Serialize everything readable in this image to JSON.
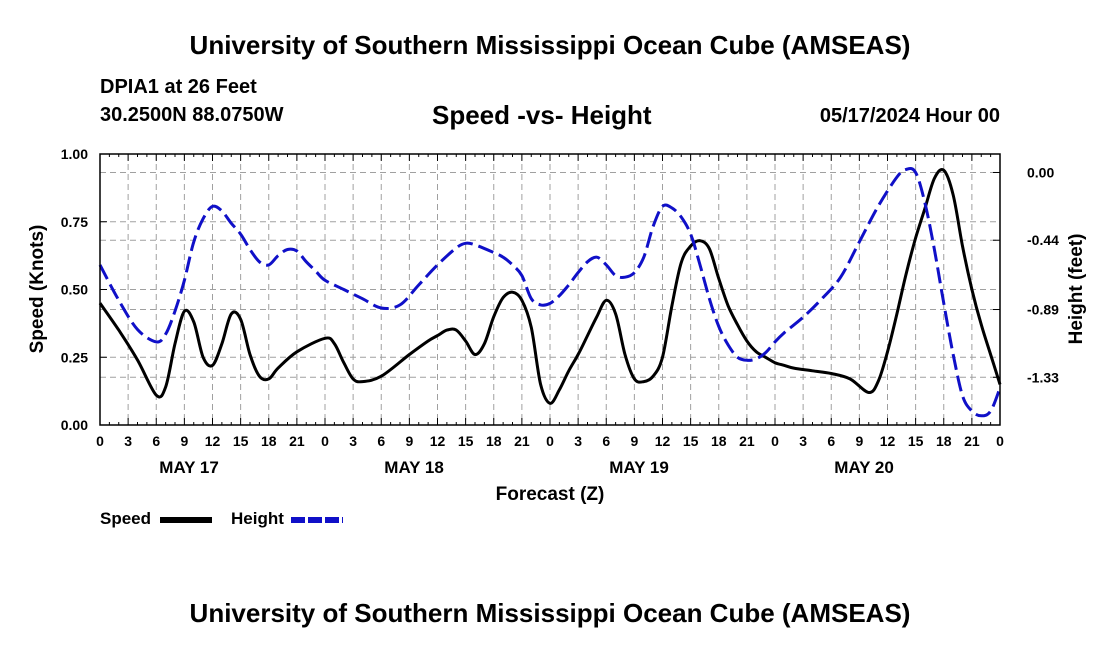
{
  "header": {
    "title": "University of Southern Mississippi Ocean Cube (AMSEAS)",
    "station": "DPIA1 at 26 Feet",
    "coords": "30.2500N  88.0750W",
    "subtitle": "Speed -vs- Height",
    "datetime": "05/17/2024 Hour 00"
  },
  "footer": {
    "title": "University of Southern Mississippi Ocean Cube (AMSEAS)"
  },
  "legend": {
    "speed_label": "Speed",
    "height_label": "Height"
  },
  "colors": {
    "speed": "#000000",
    "height": "#1010c8",
    "grid": "#a0a0a0"
  },
  "chart_data": {
    "type": "line",
    "title": "Speed -vs- Height",
    "xlabel": "Forecast (Z)",
    "ylabel": "Speed (Knots)",
    "y2label": "Height (feet)",
    "xlim": [
      0,
      96
    ],
    "ylim": [
      0,
      1.0
    ],
    "y2lim": [
      -1.64,
      0.12
    ],
    "x_ticks": [
      0,
      3,
      6,
      9,
      12,
      15,
      18,
      21,
      24,
      27,
      30,
      33,
      36,
      39,
      42,
      45,
      48,
      51,
      54,
      57,
      60,
      63,
      66,
      69,
      72,
      75,
      78,
      81,
      84,
      87,
      90,
      93,
      96
    ],
    "x_tick_labels": [
      "0",
      "3",
      "6",
      "9",
      "12",
      "15",
      "18",
      "21",
      "0",
      "3",
      "6",
      "9",
      "12",
      "15",
      "18",
      "21",
      "0",
      "3",
      "6",
      "9",
      "12",
      "15",
      "18",
      "21",
      "0",
      "3",
      "6",
      "9",
      "12",
      "15",
      "18",
      "21",
      "0"
    ],
    "day_labels": [
      {
        "x": 9.5,
        "label": "MAY 17"
      },
      {
        "x": 33.5,
        "label": "MAY 18"
      },
      {
        "x": 57.5,
        "label": "MAY 19"
      },
      {
        "x": 81.5,
        "label": "MAY 20"
      }
    ],
    "y_ticks": [
      0.0,
      0.25,
      0.5,
      0.75,
      1.0
    ],
    "y_tick_labels": [
      "0.00",
      "0.25",
      "0.50",
      "0.75",
      "1.00"
    ],
    "y2_ticks": [
      0.0,
      -0.44,
      -0.89,
      -1.33
    ],
    "y2_tick_labels": [
      "0.00",
      "-0.44",
      "-0.89",
      "-1.33"
    ],
    "series": [
      {
        "name": "Speed",
        "axis": "left",
        "style": "solid",
        "x": [
          0,
          2,
          4,
          6,
          7,
          8,
          9,
          10,
          11,
          12,
          13,
          14,
          15,
          16,
          17,
          18,
          19,
          21,
          24,
          25,
          26,
          27,
          28,
          30,
          33,
          35,
          36,
          37,
          38,
          39,
          40,
          41,
          42,
          43,
          44,
          45,
          46,
          47,
          48,
          49,
          50,
          51,
          52,
          53,
          54,
          55,
          56,
          57,
          58,
          59,
          60,
          61,
          62,
          63,
          64,
          65,
          66,
          67,
          68,
          69,
          70,
          71,
          72,
          73,
          74,
          76,
          78,
          80,
          82,
          83,
          84,
          85,
          86,
          87,
          88,
          89,
          90,
          91,
          92,
          93,
          94,
          95,
          96
        ],
        "values": [
          0.45,
          0.35,
          0.24,
          0.11,
          0.14,
          0.3,
          0.42,
          0.38,
          0.25,
          0.22,
          0.3,
          0.41,
          0.39,
          0.26,
          0.18,
          0.17,
          0.21,
          0.27,
          0.32,
          0.3,
          0.23,
          0.17,
          0.16,
          0.18,
          0.26,
          0.31,
          0.33,
          0.35,
          0.35,
          0.31,
          0.26,
          0.3,
          0.4,
          0.47,
          0.49,
          0.46,
          0.36,
          0.15,
          0.08,
          0.13,
          0.2,
          0.26,
          0.33,
          0.4,
          0.46,
          0.41,
          0.26,
          0.17,
          0.16,
          0.18,
          0.25,
          0.44,
          0.6,
          0.66,
          0.68,
          0.65,
          0.54,
          0.44,
          0.37,
          0.31,
          0.27,
          0.25,
          0.23,
          0.22,
          0.21,
          0.2,
          0.19,
          0.17,
          0.12,
          0.16,
          0.27,
          0.41,
          0.56,
          0.69,
          0.8,
          0.91,
          0.94,
          0.85,
          0.66,
          0.5,
          0.37,
          0.26,
          0.15
        ]
      },
      {
        "name": "Height",
        "axis": "right",
        "style": "dashed",
        "x": [
          0,
          2,
          4,
          6,
          7,
          8,
          9,
          10,
          11,
          12,
          13,
          14,
          15,
          16,
          17,
          18,
          19,
          20,
          21,
          22,
          23,
          24,
          26,
          28,
          30,
          32,
          34,
          36,
          38,
          39,
          40,
          42,
          43,
          44,
          45,
          46,
          47,
          48,
          49,
          50,
          51,
          52,
          53,
          54,
          55,
          56,
          57,
          58,
          59,
          60,
          61,
          62,
          63,
          64,
          65,
          66,
          67,
          68,
          69,
          70,
          71,
          72,
          73,
          75,
          77,
          79,
          81,
          83,
          85,
          86,
          87,
          88,
          89,
          90,
          91,
          92,
          93,
          94,
          95,
          96
        ],
        "values": [
          -0.6,
          -0.83,
          -1.02,
          -1.1,
          -1.05,
          -0.9,
          -0.7,
          -0.45,
          -0.3,
          -0.22,
          -0.25,
          -0.33,
          -0.4,
          -0.5,
          -0.58,
          -0.6,
          -0.54,
          -0.5,
          -0.51,
          -0.58,
          -0.64,
          -0.7,
          -0.76,
          -0.82,
          -0.88,
          -0.86,
          -0.73,
          -0.6,
          -0.49,
          -0.46,
          -0.47,
          -0.52,
          -0.55,
          -0.6,
          -0.67,
          -0.82,
          -0.86,
          -0.85,
          -0.8,
          -0.73,
          -0.65,
          -0.58,
          -0.55,
          -0.6,
          -0.67,
          -0.68,
          -0.65,
          -0.55,
          -0.35,
          -0.22,
          -0.23,
          -0.29,
          -0.4,
          -0.6,
          -0.82,
          -1.0,
          -1.12,
          -1.2,
          -1.22,
          -1.21,
          -1.17,
          -1.1,
          -1.04,
          -0.94,
          -0.82,
          -0.68,
          -0.45,
          -0.22,
          -0.03,
          0.02,
          0.0,
          -0.2,
          -0.5,
          -0.85,
          -1.18,
          -1.45,
          -1.55,
          -1.58,
          -1.55,
          -1.4
        ]
      }
    ]
  }
}
